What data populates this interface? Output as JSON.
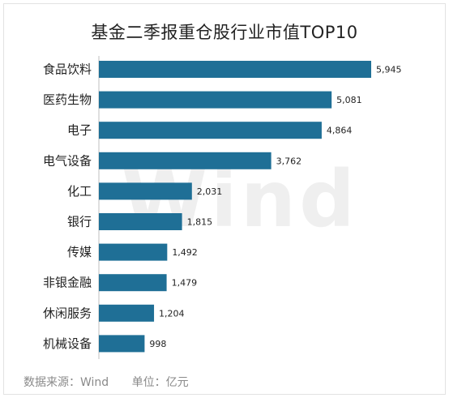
{
  "chart_data": {
    "type": "bar",
    "orientation": "horizontal",
    "title": "基金二季报重仓股行业市值TOP10",
    "categories": [
      "食品饮料",
      "医药生物",
      "电子",
      "电气设备",
      "化工",
      "银行",
      "传媒",
      "非银金融",
      "休闲服务",
      "机械设备"
    ],
    "values": [
      5945,
      5081,
      4864,
      3762,
      2031,
      1815,
      1492,
      1479,
      1204,
      998
    ],
    "value_labels": [
      "5,945",
      "5,081",
      "4,864",
      "3,762",
      "2,031",
      "1,815",
      "1,492",
      "1,479",
      "1,204",
      "998"
    ],
    "xlabel": "",
    "ylabel": "",
    "xlim": [
      0,
      6000
    ],
    "grid": false,
    "bar_color": "#1f6f96"
  },
  "watermark": "Wind",
  "footer": {
    "source": "数据来源：Wind",
    "unit": "单位：亿元"
  }
}
